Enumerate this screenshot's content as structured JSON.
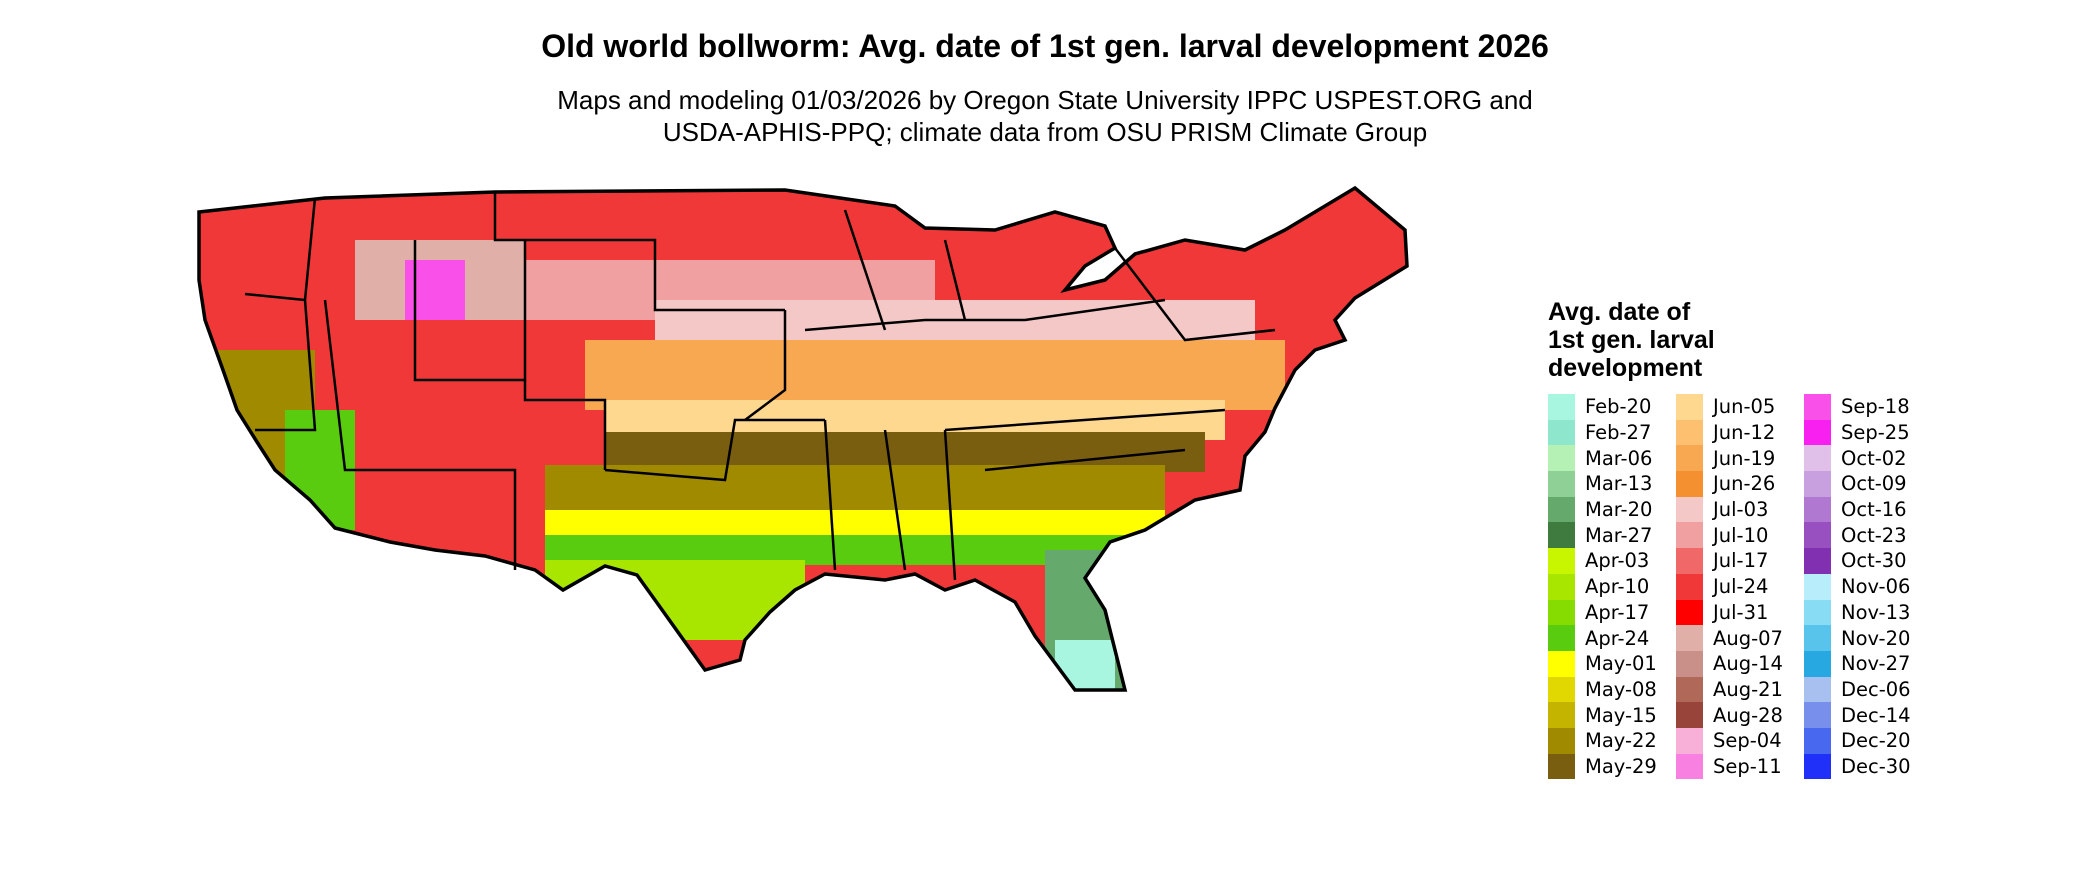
{
  "title": "Old world bollworm: Avg. date of 1st gen. larval development 2026",
  "subtitle_line1": "Maps and modeling 01/03/2026 by Oregon State University IPPC USPEST.ORG and",
  "subtitle_line2": "USDA-APHIS-PPQ; climate data from OSU PRISM Climate Group",
  "legend": {
    "title_line1": "Avg. date of",
    "title_line2": "1st gen. larval",
    "title_line3": "development",
    "items": [
      {
        "label": "Feb-20",
        "color": "#a8f5e0"
      },
      {
        "label": "Feb-27",
        "color": "#8ee6cc"
      },
      {
        "label": "Mar-06",
        "color": "#b5f0b5"
      },
      {
        "label": "Mar-13",
        "color": "#8fd096"
      },
      {
        "label": "Mar-20",
        "color": "#66a96c"
      },
      {
        "label": "Mar-27",
        "color": "#3f7a3f"
      },
      {
        "label": "Apr-03",
        "color": "#c8f500"
      },
      {
        "label": "Apr-10",
        "color": "#a8e600"
      },
      {
        "label": "Apr-17",
        "color": "#86dc00"
      },
      {
        "label": "Apr-24",
        "color": "#5acc10"
      },
      {
        "label": "May-01",
        "color": "#ffff00"
      },
      {
        "label": "May-08",
        "color": "#e0d800"
      },
      {
        "label": "May-15",
        "color": "#c4b400"
      },
      {
        "label": "May-22",
        "color": "#a08a00"
      },
      {
        "label": "May-29",
        "color": "#7a5e10"
      },
      {
        "label": "Jun-05",
        "color": "#ffd890"
      },
      {
        "label": "Jun-12",
        "color": "#fcc070"
      },
      {
        "label": "Jun-19",
        "color": "#f8a850"
      },
      {
        "label": "Jun-26",
        "color": "#f49030"
      },
      {
        "label": "Jul-03",
        "color": "#f5c8c8"
      },
      {
        "label": "Jul-10",
        "color": "#f0a0a0"
      },
      {
        "label": "Jul-17",
        "color": "#f06868"
      },
      {
        "label": "Jul-24",
        "color": "#f03838"
      },
      {
        "label": "Jul-31",
        "color": "#ff0000"
      },
      {
        "label": "Aug-07",
        "color": "#e0b0a8"
      },
      {
        "label": "Aug-14",
        "color": "#c89088"
      },
      {
        "label": "Aug-21",
        "color": "#b06858"
      },
      {
        "label": "Aug-28",
        "color": "#98443a"
      },
      {
        "label": "Sep-04",
        "color": "#f8b0d8"
      },
      {
        "label": "Sep-11",
        "color": "#f880e0"
      },
      {
        "label": "Sep-18",
        "color": "#f850e8"
      },
      {
        "label": "Sep-25",
        "color": "#f820f0"
      },
      {
        "label": "Oct-02",
        "color": "#e0c0e8"
      },
      {
        "label": "Oct-09",
        "color": "#c8a0e0"
      },
      {
        "label": "Oct-16",
        "color": "#b078d0"
      },
      {
        "label": "Oct-23",
        "color": "#9850c0"
      },
      {
        "label": "Oct-30",
        "color": "#8030b0"
      },
      {
        "label": "Nov-06",
        "color": "#b8eefc"
      },
      {
        "label": "Nov-13",
        "color": "#88dcf4"
      },
      {
        "label": "Nov-20",
        "color": "#58c4ec"
      },
      {
        "label": "Nov-27",
        "color": "#28a8e0"
      },
      {
        "label": "Dec-06",
        "color": "#a8c0f0"
      },
      {
        "label": "Dec-14",
        "color": "#7890ec"
      },
      {
        "label": "Dec-20",
        "color": "#4868f0"
      },
      {
        "label": "Dec-30",
        "color": "#2030f8"
      }
    ]
  }
}
